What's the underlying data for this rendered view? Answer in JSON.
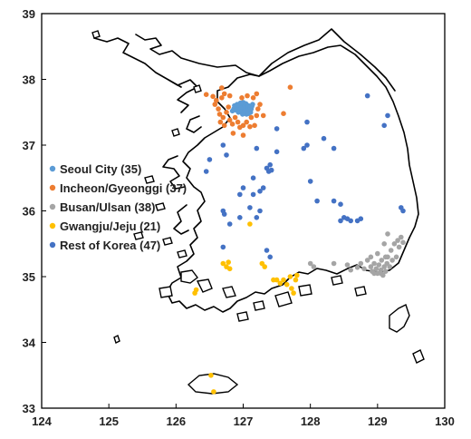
{
  "chart_data": {
    "type": "scatter",
    "title": "",
    "xlabel": "",
    "ylabel": "",
    "xlim": [
      124,
      130
    ],
    "ylim": [
      33,
      39
    ],
    "xticks": [
      "124",
      "125",
      "126",
      "127",
      "128",
      "129",
      "130"
    ],
    "yticks": [
      "33",
      "34",
      "35",
      "36",
      "37",
      "38",
      "39"
    ],
    "grid": false,
    "legend_position": "left",
    "series": [
      {
        "name": "Seoul City (35)",
        "color": "#5B9BD5",
        "points": [
          [
            126.86,
            37.55
          ],
          [
            126.88,
            37.57
          ],
          [
            126.9,
            37.53
          ],
          [
            126.92,
            37.58
          ],
          [
            126.94,
            37.55
          ],
          [
            126.95,
            37.6
          ],
          [
            126.96,
            37.51
          ],
          [
            126.97,
            37.56
          ],
          [
            126.98,
            37.62
          ],
          [
            126.99,
            37.53
          ],
          [
            127.0,
            37.57
          ],
          [
            127.01,
            37.5
          ],
          [
            127.02,
            37.6
          ],
          [
            127.03,
            37.54
          ],
          [
            127.04,
            37.63
          ],
          [
            127.05,
            37.52
          ],
          [
            127.06,
            37.58
          ],
          [
            127.07,
            37.55
          ],
          [
            127.08,
            37.6
          ],
          [
            127.09,
            37.53
          ],
          [
            127.1,
            37.57
          ],
          [
            127.11,
            37.5
          ],
          [
            127.12,
            37.55
          ],
          [
            127.13,
            37.59
          ],
          [
            126.87,
            37.6
          ],
          [
            126.91,
            37.62
          ],
          [
            126.93,
            37.5
          ],
          [
            127.0,
            37.65
          ],
          [
            127.05,
            37.47
          ],
          [
            126.84,
            37.52
          ],
          [
            127.14,
            37.62
          ],
          [
            126.99,
            37.47
          ],
          [
            127.02,
            37.52
          ],
          [
            126.96,
            37.64
          ],
          [
            127.08,
            37.48
          ]
        ]
      },
      {
        "name": "Incheon/Gyeonggi (37)",
        "color": "#ED7D31",
        "points": [
          [
            126.45,
            37.77
          ],
          [
            126.55,
            37.74
          ],
          [
            126.6,
            37.68
          ],
          [
            126.68,
            37.72
          ],
          [
            126.72,
            37.78
          ],
          [
            126.8,
            37.75
          ],
          [
            126.58,
            37.62
          ],
          [
            126.63,
            37.55
          ],
          [
            126.65,
            37.47
          ],
          [
            126.7,
            37.42
          ],
          [
            126.66,
            37.35
          ],
          [
            126.72,
            37.3
          ],
          [
            126.75,
            37.5
          ],
          [
            126.78,
            37.58
          ],
          [
            126.8,
            37.38
          ],
          [
            126.84,
            37.32
          ],
          [
            126.88,
            37.42
          ],
          [
            126.92,
            37.35
          ],
          [
            126.95,
            37.27
          ],
          [
            127.0,
            37.3
          ],
          [
            127.05,
            37.35
          ],
          [
            127.1,
            37.28
          ],
          [
            127.12,
            37.42
          ],
          [
            127.17,
            37.3
          ],
          [
            127.2,
            37.45
          ],
          [
            127.22,
            37.55
          ],
          [
            127.25,
            37.62
          ],
          [
            127.3,
            37.45
          ],
          [
            127.06,
            37.75
          ],
          [
            127.15,
            37.72
          ],
          [
            127.2,
            37.78
          ],
          [
            126.98,
            37.72
          ],
          [
            126.68,
            37.87
          ],
          [
            127.6,
            37.48
          ],
          [
            127.7,
            37.88
          ],
          [
            126.85,
            37.18
          ],
          [
            127.0,
            37.15
          ]
        ]
      },
      {
        "name": "Busan/Ulsan (38)",
        "color": "#A5A5A5",
        "points": [
          [
            128.0,
            35.2
          ],
          [
            128.05,
            35.15
          ],
          [
            128.35,
            35.2
          ],
          [
            128.55,
            35.18
          ],
          [
            128.6,
            35.1
          ],
          [
            128.7,
            35.14
          ],
          [
            128.75,
            35.2
          ],
          [
            128.8,
            35.12
          ],
          [
            128.85,
            35.25
          ],
          [
            128.9,
            35.15
          ],
          [
            128.92,
            35.08
          ],
          [
            128.95,
            35.2
          ],
          [
            128.98,
            35.12
          ],
          [
            129.0,
            35.05
          ],
          [
            129.02,
            35.18
          ],
          [
            129.05,
            35.1
          ],
          [
            129.06,
            35.25
          ],
          [
            129.08,
            35.02
          ],
          [
            129.1,
            35.15
          ],
          [
            129.12,
            35.08
          ],
          [
            129.14,
            35.2
          ],
          [
            129.15,
            35.3
          ],
          [
            129.18,
            35.15
          ],
          [
            129.2,
            35.4
          ],
          [
            129.22,
            35.25
          ],
          [
            129.25,
            35.5
          ],
          [
            129.28,
            35.3
          ],
          [
            129.3,
            35.55
          ],
          [
            129.32,
            35.45
          ],
          [
            129.35,
            35.6
          ],
          [
            129.38,
            35.52
          ],
          [
            129.1,
            35.5
          ],
          [
            129.0,
            35.35
          ],
          [
            128.9,
            35.3
          ],
          [
            129.15,
            35.65
          ],
          [
            129.05,
            35.05
          ],
          [
            129.12,
            35.3
          ],
          [
            128.95,
            35.05
          ]
        ]
      },
      {
        "name": "Gwangju/Jeju (21)",
        "color": "#FFC000",
        "points": [
          [
            126.7,
            35.2
          ],
          [
            126.75,
            35.15
          ],
          [
            126.78,
            35.22
          ],
          [
            126.8,
            35.12
          ],
          [
            126.3,
            34.8
          ],
          [
            126.28,
            34.75
          ],
          [
            127.1,
            35.8
          ],
          [
            127.28,
            35.2
          ],
          [
            127.32,
            35.15
          ],
          [
            127.5,
            34.95
          ],
          [
            127.55,
            34.9
          ],
          [
            127.6,
            34.95
          ],
          [
            127.65,
            34.88
          ],
          [
            127.7,
            35.0
          ],
          [
            127.72,
            34.82
          ],
          [
            127.75,
            34.75
          ],
          [
            127.78,
            34.95
          ],
          [
            127.8,
            35.02
          ],
          [
            126.52,
            33.5
          ],
          [
            126.56,
            33.25
          ],
          [
            127.45,
            34.95
          ]
        ]
      },
      {
        "name": "Rest of Korea (47)",
        "color": "#4472C4",
        "points": [
          [
            126.5,
            36.78
          ],
          [
            126.45,
            36.6
          ],
          [
            126.7,
            37.0
          ],
          [
            126.75,
            36.85
          ],
          [
            127.2,
            36.95
          ],
          [
            127.5,
            37.25
          ],
          [
            127.5,
            36.9
          ],
          [
            127.35,
            36.65
          ],
          [
            127.38,
            36.6
          ],
          [
            127.4,
            36.7
          ],
          [
            127.42,
            36.62
          ],
          [
            127.3,
            36.35
          ],
          [
            127.25,
            36.3
          ],
          [
            127.15,
            36.25
          ],
          [
            127.1,
            36.05
          ],
          [
            126.7,
            36.0
          ],
          [
            126.72,
            35.95
          ],
          [
            126.8,
            35.8
          ],
          [
            126.95,
            35.9
          ],
          [
            127.2,
            35.9
          ],
          [
            126.7,
            35.45
          ],
          [
            127.35,
            35.4
          ],
          [
            127.4,
            35.3
          ],
          [
            127.9,
            36.95
          ],
          [
            127.95,
            37.0
          ],
          [
            127.95,
            37.35
          ],
          [
            128.35,
            36.95
          ],
          [
            128.2,
            37.1
          ],
          [
            128.1,
            36.15
          ],
          [
            128.35,
            36.15
          ],
          [
            128.45,
            36.1
          ],
          [
            128.45,
            35.85
          ],
          [
            128.5,
            35.9
          ],
          [
            128.55,
            35.88
          ],
          [
            128.6,
            35.85
          ],
          [
            128.7,
            35.85
          ],
          [
            128.75,
            35.88
          ],
          [
            128.85,
            37.75
          ],
          [
            129.15,
            37.45
          ],
          [
            129.1,
            37.3
          ],
          [
            129.35,
            36.05
          ],
          [
            129.38,
            36.0
          ],
          [
            127.15,
            36.5
          ],
          [
            127.0,
            36.35
          ],
          [
            127.25,
            36.0
          ],
          [
            126.95,
            36.25
          ],
          [
            128.0,
            36.45
          ]
        ]
      }
    ]
  }
}
